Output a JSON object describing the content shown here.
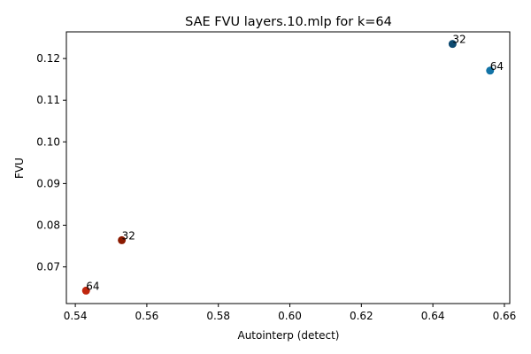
{
  "chart_data": {
    "type": "scatter",
    "title": "SAE FVU layers.10.mlp for k=64",
    "xlabel": "Autointerp (detect)",
    "ylabel": "FVU",
    "xlim": [
      0.5375,
      0.6615
    ],
    "ylim": [
      0.0612,
      0.1264
    ],
    "xticks": [
      "0.54",
      "0.56",
      "0.58",
      "0.60",
      "0.62",
      "0.64",
      "0.66"
    ],
    "yticks": [
      "0.07",
      "0.08",
      "0.09",
      "0.10",
      "0.11",
      "0.12"
    ],
    "grid": false,
    "points": [
      {
        "x": 0.6455,
        "y": 0.1235,
        "label": "32",
        "color": "#0d4a70"
      },
      {
        "x": 0.656,
        "y": 0.1171,
        "label": "64",
        "color": "#1273a6"
      },
      {
        "x": 0.553,
        "y": 0.0764,
        "label": "32",
        "color": "#8b1a00"
      },
      {
        "x": 0.543,
        "y": 0.0643,
        "label": "64",
        "color": "#c0260d"
      }
    ]
  }
}
